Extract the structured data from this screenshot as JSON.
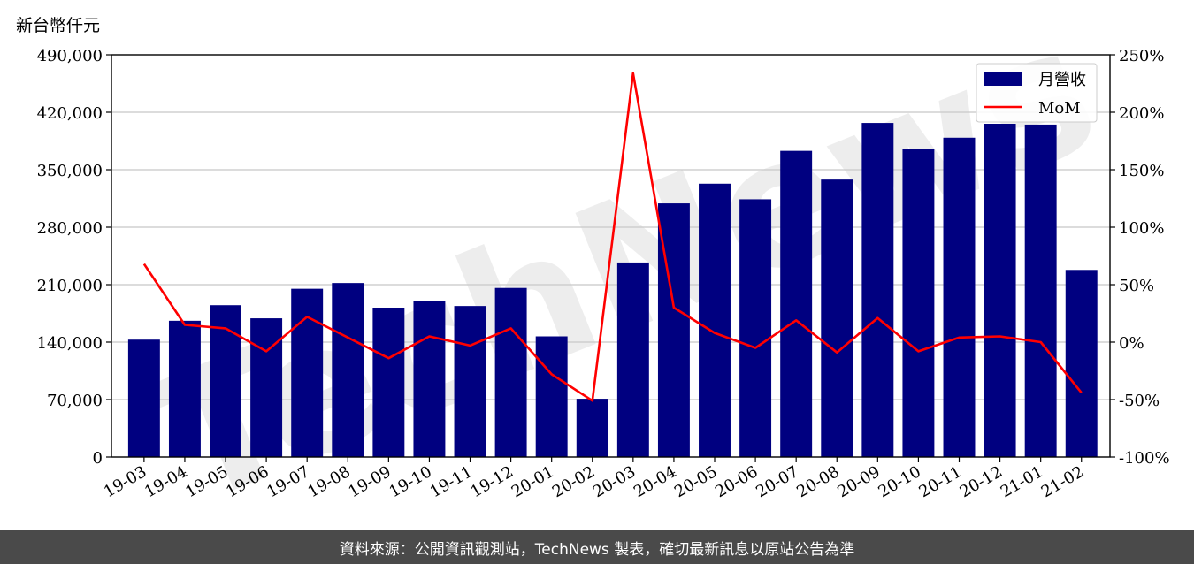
{
  "unit_label": "新台幣仟元",
  "footer_text": "資料來源：公開資訊觀測站，TechNews 製表，確切最新訊息以原站公告為準",
  "watermark": "TechNews",
  "colors": {
    "bar": "#000080",
    "line": "#ff0000",
    "grid": "#c8c8c8",
    "footer_bg": "#4a4a4a"
  },
  "chart_data": {
    "type": "bar",
    "categories": [
      "19-03",
      "19-04",
      "19-05",
      "19-06",
      "19-07",
      "19-08",
      "19-09",
      "19-10",
      "19-11",
      "19-12",
      "20-01",
      "20-02",
      "20-03",
      "20-04",
      "20-05",
      "20-06",
      "20-07",
      "20-08",
      "20-09",
      "20-10",
      "20-11",
      "20-12",
      "21-01",
      "21-02"
    ],
    "series": [
      {
        "name": "月營收",
        "type": "bar",
        "axis": "left",
        "values": [
          143000,
          166000,
          185000,
          169000,
          205000,
          212000,
          182000,
          190000,
          184000,
          206000,
          147000,
          71000,
          237000,
          309000,
          333000,
          314000,
          373000,
          338000,
          407000,
          375000,
          389000,
          406000,
          405000,
          228000
        ]
      },
      {
        "name": "MoM",
        "type": "line",
        "axis": "right",
        "values": [
          68,
          15,
          12,
          -8,
          22,
          4,
          -14,
          5,
          -3,
          12,
          -28,
          -51,
          234,
          30,
          8,
          -5,
          19,
          -9,
          21,
          -8,
          4,
          5,
          0,
          -44
        ]
      }
    ],
    "left_axis": {
      "ylim": [
        0,
        490000
      ],
      "ticks": [
        "0",
        "70,000",
        "140,000",
        "210,000",
        "280,000",
        "350,000",
        "420,000",
        "490,000"
      ]
    },
    "right_axis": {
      "ylim": [
        -100,
        250
      ],
      "ticks": [
        "-100%",
        "-50%",
        "0%",
        "50%",
        "100%",
        "150%",
        "200%",
        "250%"
      ]
    },
    "grid": true,
    "legend": "top-right"
  }
}
